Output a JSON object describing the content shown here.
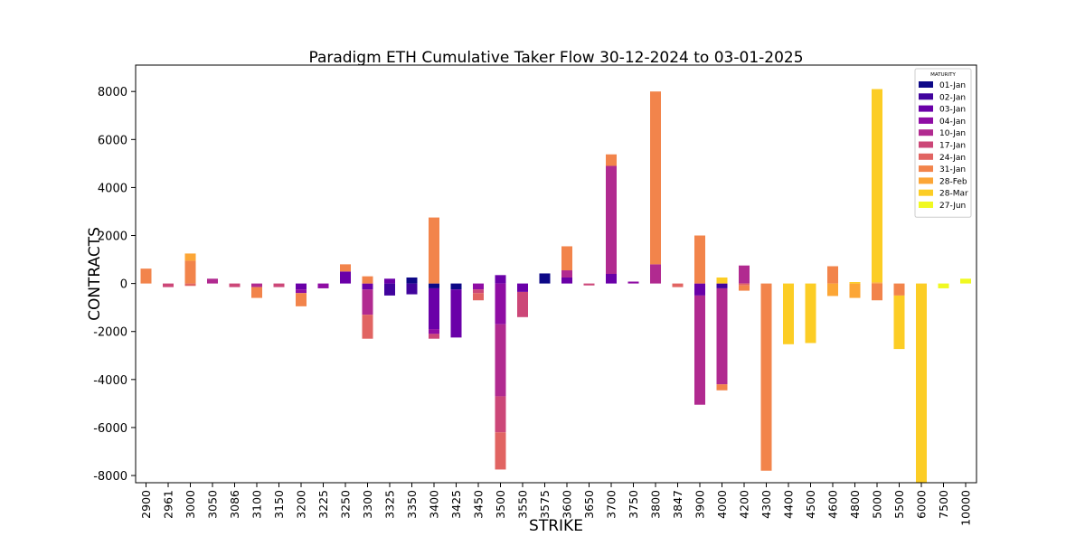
{
  "chart_data": {
    "type": "bar",
    "stacked": true,
    "title": "Paradigm ETH Cumulative Taker Flow 30-12-2024 to 03-01-2025",
    "xlabel": "STRIKE",
    "ylabel": "CONTRACTS",
    "ylim": [
      -8300,
      9100
    ],
    "yticks": [
      -8000,
      -6000,
      -4000,
      -2000,
      0,
      2000,
      4000,
      6000,
      8000
    ],
    "legend_title": "MATURITY",
    "legend_position": "top-right",
    "grid": false,
    "categories": [
      "2900",
      "2961",
      "3000",
      "3050",
      "3086",
      "3100",
      "3150",
      "3200",
      "3225",
      "3250",
      "3300",
      "3325",
      "3350",
      "3400",
      "3425",
      "3450",
      "3500",
      "3550",
      "3575",
      "3600",
      "3650",
      "3700",
      "3750",
      "3800",
      "3847",
      "3900",
      "4000",
      "4200",
      "4300",
      "4400",
      "4500",
      "4600",
      "4800",
      "5000",
      "5500",
      "6000",
      "7500",
      "10000"
    ],
    "series": [
      {
        "name": "01-Jan",
        "color": "#0d0887",
        "values": [
          0,
          0,
          0,
          0,
          0,
          0,
          0,
          0,
          0,
          0,
          0,
          0,
          250,
          -200,
          -250,
          0,
          0,
          0,
          420,
          0,
          0,
          0,
          0,
          0,
          0,
          0,
          0,
          0,
          0,
          0,
          0,
          0,
          0,
          0,
          0,
          0,
          0,
          0
        ]
      },
      {
        "name": "02-Jan",
        "color": "#41049d",
        "values": [
          0,
          0,
          0,
          0,
          0,
          0,
          0,
          0,
          0,
          0,
          0,
          -500,
          -450,
          0,
          0,
          0,
          0,
          0,
          0,
          0,
          0,
          0,
          0,
          0,
          0,
          0,
          -200,
          0,
          0,
          0,
          0,
          0,
          0,
          0,
          0,
          0,
          0,
          0
        ]
      },
      {
        "name": "03-Jan",
        "color": "#6a00a8",
        "values": [
          0,
          0,
          0,
          0,
          0,
          0,
          0,
          -250,
          0,
          500,
          -250,
          200,
          0,
          -1700,
          -2000,
          0,
          350,
          -350,
          0,
          250,
          0,
          400,
          0,
          0,
          0,
          -500,
          0,
          0,
          0,
          0,
          0,
          0,
          0,
          0,
          0,
          0,
          0,
          0
        ]
      },
      {
        "name": "04-Jan",
        "color": "#8f0da4",
        "values": [
          0,
          0,
          0,
          0,
          0,
          0,
          0,
          -150,
          -200,
          0,
          0,
          0,
          0,
          -200,
          0,
          -250,
          -1700,
          0,
          0,
          0,
          0,
          0,
          80,
          0,
          0,
          0,
          0,
          0,
          0,
          0,
          0,
          0,
          0,
          0,
          0,
          0,
          0,
          0
        ]
      },
      {
        "name": "10-Jan",
        "color": "#b12a90",
        "values": [
          0,
          0,
          0,
          200,
          0,
          -150,
          0,
          0,
          0,
          0,
          -1050,
          0,
          0,
          0,
          0,
          0,
          -3000,
          0,
          0,
          300,
          0,
          4500,
          0,
          800,
          0,
          -4550,
          -4000,
          750,
          0,
          0,
          0,
          0,
          0,
          0,
          0,
          0,
          0,
          0
        ]
      },
      {
        "name": "17-Jan",
        "color": "#cc4778",
        "values": [
          0,
          -150,
          0,
          0,
          -150,
          0,
          -150,
          0,
          0,
          0,
          0,
          0,
          0,
          -200,
          0,
          -150,
          -1500,
          -1050,
          0,
          0,
          -80,
          0,
          0,
          0,
          0,
          0,
          0,
          0,
          0,
          0,
          0,
          0,
          0,
          0,
          0,
          0,
          0,
          0
        ]
      },
      {
        "name": "24-Jan",
        "color": "#e16462",
        "values": [
          0,
          0,
          -100,
          0,
          0,
          0,
          0,
          0,
          0,
          0,
          -1000,
          0,
          0,
          0,
          0,
          -300,
          -1550,
          0,
          0,
          0,
          0,
          0,
          0,
          0,
          -150,
          0,
          0,
          -80,
          0,
          0,
          0,
          0,
          0,
          0,
          0,
          0,
          0,
          0
        ]
      },
      {
        "name": "31-Jan",
        "color": "#f2844b",
        "values": [
          620,
          0,
          950,
          0,
          0,
          -450,
          0,
          -550,
          0,
          300,
          300,
          0,
          0,
          2750,
          0,
          0,
          0,
          0,
          0,
          1000,
          0,
          480,
          0,
          7200,
          0,
          2000,
          -250,
          -220,
          -7800,
          0,
          0,
          720,
          0,
          -700,
          -500,
          0,
          0,
          0
        ]
      },
      {
        "name": "28-Feb",
        "color": "#fca636",
        "values": [
          0,
          0,
          300,
          0,
          0,
          0,
          0,
          0,
          0,
          0,
          0,
          0,
          0,
          0,
          0,
          0,
          0,
          0,
          0,
          0,
          0,
          0,
          0,
          0,
          0,
          0,
          0,
          0,
          0,
          0,
          0,
          -520,
          -600,
          50,
          0,
          0,
          0,
          0
        ]
      },
      {
        "name": "28-Mar",
        "color": "#fccd25",
        "values": [
          0,
          0,
          0,
          0,
          0,
          0,
          0,
          0,
          0,
          0,
          0,
          0,
          0,
          0,
          0,
          0,
          0,
          0,
          0,
          0,
          0,
          0,
          0,
          0,
          0,
          0,
          250,
          0,
          0,
          -2530,
          -2480,
          0,
          60,
          8050,
          -2230,
          -8300,
          0,
          0
        ]
      },
      {
        "name": "27-Jun",
        "color": "#f0f921",
        "values": [
          0,
          0,
          0,
          0,
          0,
          0,
          0,
          0,
          0,
          0,
          0,
          0,
          0,
          0,
          0,
          0,
          0,
          0,
          0,
          0,
          0,
          0,
          0,
          0,
          0,
          0,
          0,
          0,
          0,
          0,
          0,
          0,
          0,
          0,
          0,
          0,
          -200,
          200
        ]
      }
    ]
  }
}
